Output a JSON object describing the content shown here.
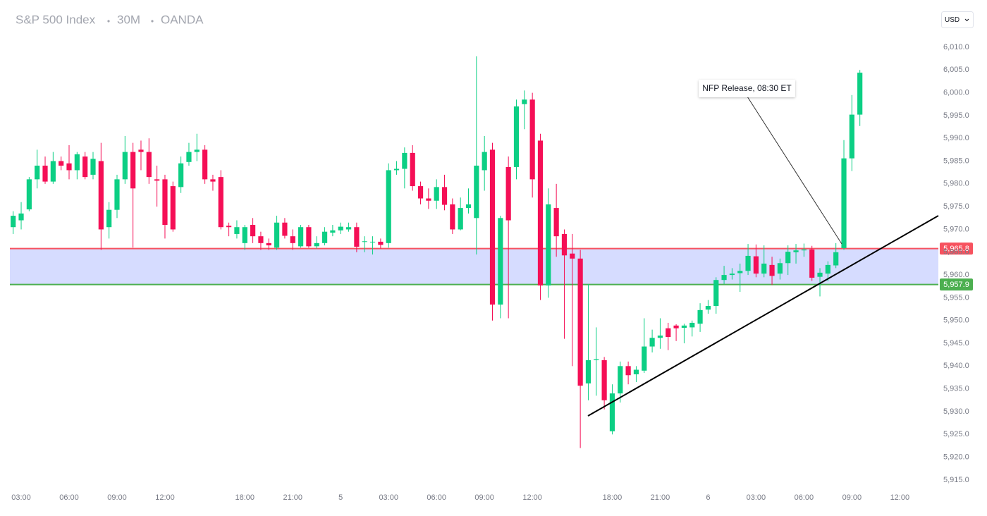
{
  "chart_data": {
    "type": "candlestick",
    "title": "S&P 500 Index",
    "interval": "30M",
    "source": "OANDA",
    "currency": "USD",
    "annotation": "NFP Release, 08:30 ET",
    "categories": [
      null,
      "03:00",
      null,
      null,
      null,
      null,
      null,
      "06:00",
      null,
      null,
      null,
      null,
      null,
      "09:00",
      null,
      null,
      null,
      null,
      null,
      "12:00",
      null,
      null,
      null,
      null,
      null,
      null,
      null,
      null,
      null,
      "18:00",
      null,
      null,
      null,
      null,
      null,
      "21:00",
      null,
      null,
      null,
      null,
      null,
      "5",
      null,
      null,
      null,
      null,
      null,
      "03:00",
      null,
      null,
      null,
      null,
      null,
      "06:00",
      null,
      null,
      null,
      null,
      null,
      "09:00",
      null,
      null,
      null,
      null,
      null,
      "12:00",
      null,
      null,
      null,
      null,
      null,
      null,
      null,
      null,
      null,
      "18:00",
      null,
      null,
      null,
      null,
      null,
      "21:00",
      null,
      null,
      null,
      null,
      null,
      "6",
      null,
      null,
      null,
      null,
      null,
      "03:00",
      null,
      null,
      null,
      null,
      null,
      "06:00",
      null,
      null,
      null,
      null,
      null,
      "09:00",
      null,
      null,
      null,
      null,
      null,
      "12:00"
    ],
    "open": [
      5970.5,
      5972,
      5974.4,
      5981,
      5984,
      5980.5,
      5985,
      5984.5,
      5983,
      5986,
      5982,
      5985,
      5970.5,
      5974.3,
      5981,
      5987,
      5987.5,
      5987,
      5981,
      5981,
      5979.5,
      5979.3,
      5984.8,
      5987,
      5987.5,
      5981,
      5981.5,
      5970.8,
      5969,
      5967,
      5971,
      5968.5,
      5967,
      5966,
      5971.5,
      5968.5,
      5966.3,
      5970.5,
      5966.3,
      5967,
      5969.3,
      5969.8,
      5970,
      5970.5,
      5967.3,
      5967.2,
      5967.3,
      5967,
      5983,
      5983.3,
      5986.8,
      5979.5,
      5976.8,
      5976.3,
      5979.3,
      5975.5,
      5970,
      5974.7,
      5972.5,
      5983,
      5987.5,
      5953.5,
      5983.7,
      5983.7,
      5997.5,
      5998.5,
      5989.5,
      5957.7,
      5974.7,
      5969,
      5964.7,
      5963.6,
      5936.2,
      5941.3,
      5941.3,
      5925.7,
      5934,
      5940,
      5938.2,
      5939,
      5944.3,
      5946.2,
      5948.3,
      5948.9,
      5948.4,
      5948.5,
      5949.3,
      5952.4,
      5953.2,
      5958.9,
      5960,
      5960.4,
      5960.9,
      5964.1,
      5960.3,
      5962.2,
      5960.3,
      5962.6,
      5965,
      5965.4,
      5965.6,
      5959.6,
      5960.3,
      5962.1,
      5965.9,
      5985.6,
      5995.2,
      null,
      null,
      null,
      null,
      null
    ],
    "high": [
      5974,
      5976,
      5981.5,
      5987.5,
      5986,
      5987,
      5986,
      5988.5,
      5987,
      5987,
      5987,
      5989,
      5976,
      5982,
      5990.5,
      5989,
      5989.5,
      5990,
      5984,
      5982,
      5980.5,
      5986,
      5989,
      5991,
      5988.5,
      5982,
      5983,
      5971.5,
      5972,
      5971,
      5972.5,
      5969.5,
      5968,
      5973,
      5972.5,
      5970,
      5971,
      5971,
      5968.5,
      5970.5,
      5971,
      5971.5,
      5971.5,
      5971.5,
      5968.5,
      5968.5,
      5968,
      5984.5,
      5985,
      5988,
      5988.5,
      5980.5,
      5979,
      5981,
      5982,
      5976.8,
      5977,
      5979,
      6008,
      5990.5,
      5989,
      5973,
      5986,
      5998.5,
      6000.5,
      6000,
      5991,
      5979,
      5980,
      5970,
      5969,
      5965.5,
      5958,
      5948.5,
      5942,
      5936,
      5941,
      5941,
      5940,
      5950.5,
      5948,
      5950.5,
      5949.5,
      5949.2,
      5949.3,
      5950,
      5953.8,
      5954.5,
      5959.5,
      5962,
      5961.5,
      5962.5,
      5966.8,
      5966.7,
      5966.5,
      5964,
      5963.6,
      5966.5,
      5966.8,
      5966.9,
      5966.4,
      5961.5,
      5963,
      5967,
      5989.6,
      5999.5,
      6005,
      null,
      null,
      null,
      null,
      null
    ],
    "low": [
      5969,
      5970,
      5974,
      5979,
      5980,
      5980,
      5983,
      5981,
      5981,
      5981,
      5981,
      5965.5,
      5968,
      5972.5,
      5980,
      5966,
      5983,
      5980,
      5975,
      5968,
      5969.5,
      5978,
      5984,
      5985,
      5980,
      5978.5,
      5970,
      5968.5,
      5968,
      5965.5,
      5967,
      5965.5,
      5965.5,
      5965.5,
      5968,
      5965.5,
      5966,
      5966,
      5965.8,
      5966.5,
      5968.5,
      5969,
      5969.5,
      5965,
      5965,
      5964.5,
      5965.8,
      5966,
      5982,
      5979,
      5978.5,
      5975.5,
      5974.5,
      5974.5,
      5974.2,
      5969,
      5969.8,
      5973.5,
      5964.5,
      5978.5,
      5950,
      5950.5,
      5950.5,
      5981,
      5992,
      5977,
      5954.5,
      5955,
      5964,
      5946,
      5940,
      5922,
      5932.5,
      5933.5,
      5930.5,
      5925,
      5932,
      5936,
      5936.5,
      5938.5,
      5943,
      5943.8,
      5943.5,
      5945.5,
      5945,
      5946.5,
      5947.5,
      5951.5,
      5951.5,
      5958,
      5959,
      5956.3,
      5960,
      5959.5,
      5959.5,
      5957.8,
      5959,
      5960,
      5962.5,
      5964,
      5958.7,
      5955.3,
      5958.6,
      5961.5,
      5965.5,
      5982.8,
      5992.7,
      null,
      null,
      null,
      null,
      null
    ],
    "close": [
      5973,
      5973.5,
      5981,
      5984,
      5980.5,
      5985,
      5984,
      5983,
      5986.5,
      5981.5,
      5985.5,
      5970,
      5974.3,
      5981,
      5987,
      5979,
      5987,
      5981.5,
      5980.7,
      5971,
      5970,
      5984.5,
      5987,
      5987.5,
      5981,
      5980.5,
      5970.5,
      5970.5,
      5970.5,
      5970.5,
      5968.5,
      5967,
      5966.5,
      5971.5,
      5968.6,
      5967,
      5970.5,
      5966.3,
      5967,
      5969.5,
      5969.8,
      5970.6,
      5970.5,
      5966.2,
      5967.4,
      5967.3,
      5966.6,
      5983,
      5983.3,
      5986.8,
      5979.5,
      5976.8,
      5976.3,
      5979.3,
      5975.4,
      5970,
      5974.7,
      5975.5,
      5984,
      5987,
      5953.5,
      5972.5,
      5972,
      5997,
      5998.5,
      5981,
      5957.7,
      5975.5,
      5968.5,
      5964.3,
      5963.6,
      5935.7,
      5941.3,
      5941.5,
      5932.5,
      5934,
      5940,
      5938,
      5939.2,
      5944.3,
      5946.2,
      5946.7,
      5946.4,
      5948.3,
      5948.9,
      5949.5,
      5952.3,
      5953.2,
      5958.9,
      5960,
      5960.3,
      5960.9,
      5964.2,
      5960.3,
      5962.5,
      5959.8,
      5962.6,
      5965.1,
      5965.4,
      5965.6,
      5959.4,
      5960.5,
      5962.2,
      5965,
      5985.6,
      5995.2,
      6004.4,
      null,
      null,
      null,
      null,
      null
    ],
    "up_color": "#0ccf84",
    "down_color": "#f50f56",
    "ylim": [
      5912,
      6014
    ],
    "yticks": [
      {
        "value": 5915,
        "label": "5,915.0"
      },
      {
        "value": 5920,
        "label": "5,920.0"
      },
      {
        "value": 5925,
        "label": "5,925.0"
      },
      {
        "value": 5930,
        "label": "5,930.0"
      },
      {
        "value": 5935,
        "label": "5,935.0"
      },
      {
        "value": 5940,
        "label": "5,940.0"
      },
      {
        "value": 5945,
        "label": "5,945.0"
      },
      {
        "value": 5950,
        "label": "5,950.0"
      },
      {
        "value": 5955,
        "label": "5,955.0"
      },
      {
        "value": 5960,
        "label": "5,960.0"
      },
      {
        "value": 5965,
        "label": "5,965.0"
      },
      {
        "value": 5970,
        "label": "5,970.0"
      },
      {
        "value": 5975,
        "label": "5,975.0"
      },
      {
        "value": 5980,
        "label": "5,980.0"
      },
      {
        "value": 5985,
        "label": "5,985.0"
      },
      {
        "value": 5990,
        "label": "5,990.0"
      },
      {
        "value": 5995,
        "label": "5,995.0"
      },
      {
        "value": 6000,
        "label": "6,000.0"
      },
      {
        "value": 6005,
        "label": "6,005.0"
      },
      {
        "value": 6010,
        "label": "6,010.0"
      }
    ],
    "grid": false,
    "levels": [
      {
        "value": 5965.8,
        "label": "5,965.8",
        "color": "#f7525f"
      },
      {
        "value": 5957.9,
        "label": "5,957.9",
        "color": "#4caf50"
      }
    ],
    "band_color": "#d6dcff"
  }
}
